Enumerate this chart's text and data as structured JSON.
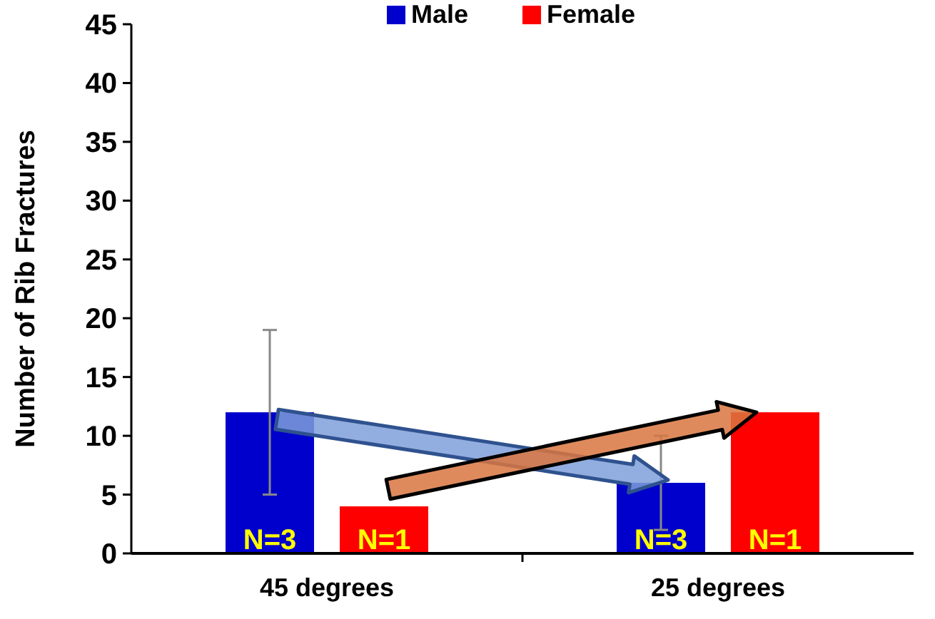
{
  "chart_data": {
    "type": "bar",
    "ylabel": "Number of Rib Fractures",
    "categories": [
      "45 degrees",
      "25 degrees"
    ],
    "series": [
      {
        "name": "Male",
        "color": "#0000cc",
        "values": [
          12,
          6
        ],
        "errors": [
          7,
          4
        ]
      },
      {
        "name": "Female",
        "color": "#ff0000",
        "values": [
          4,
          12
        ]
      }
    ],
    "annotations": [
      "N=3",
      "N=1",
      "N=3",
      "N=1"
    ],
    "ylim": [
      0,
      45
    ],
    "yticks": [
      0,
      5,
      10,
      15,
      20,
      25,
      30,
      35,
      40,
      45
    ],
    "grid": false,
    "legend": "top"
  }
}
